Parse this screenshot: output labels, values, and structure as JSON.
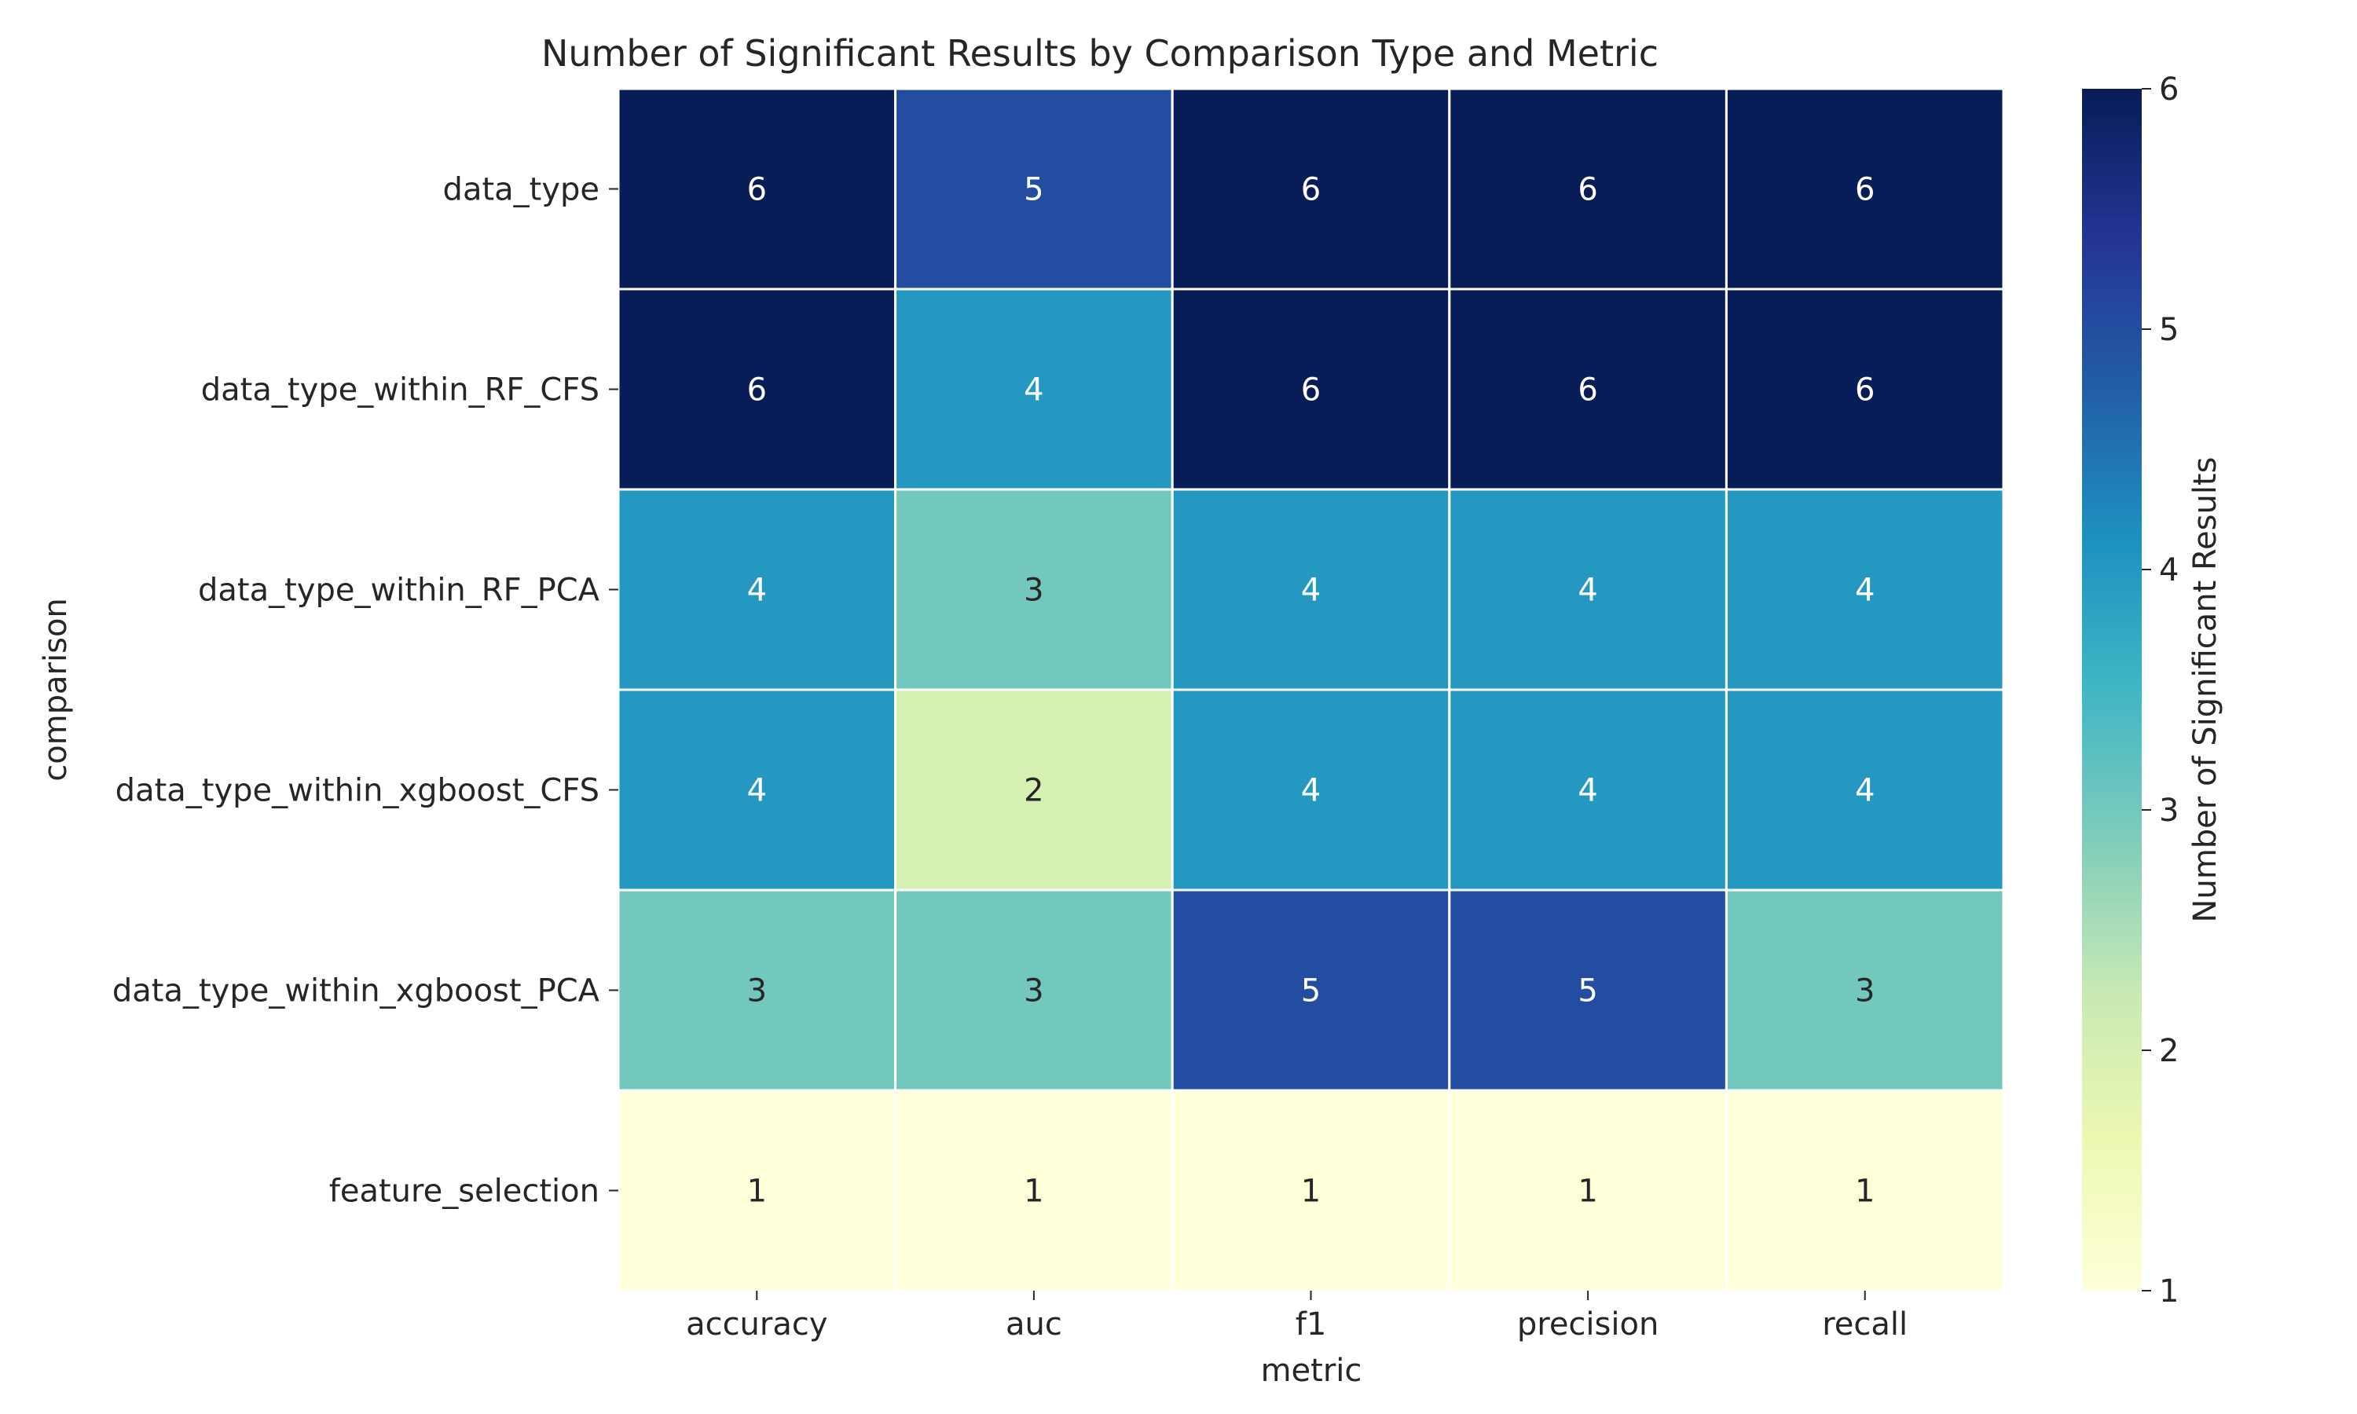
{
  "chart_data": {
    "type": "heatmap",
    "title": "Number of Significant Results by Comparison Type and Metric",
    "xlabel": "metric",
    "ylabel": "comparison",
    "x_categories": [
      "accuracy",
      "auc",
      "f1",
      "precision",
      "recall"
    ],
    "y_categories": [
      "data_type",
      "data_type_within_RF_CFS",
      "data_type_within_RF_PCA",
      "data_type_within_xgboost_CFS",
      "data_type_within_xgboost_PCA",
      "feature_selection"
    ],
    "values": [
      [
        6,
        5,
        6,
        6,
        6
      ],
      [
        6,
        4,
        6,
        6,
        6
      ],
      [
        4,
        3,
        4,
        4,
        4
      ],
      [
        4,
        2,
        4,
        4,
        4
      ],
      [
        3,
        3,
        5,
        5,
        3
      ],
      [
        1,
        1,
        1,
        1,
        1
      ]
    ],
    "colorbar": {
      "label": "Number of Significant Results",
      "range": [
        1,
        6
      ],
      "ticks": [
        "1",
        "2",
        "3",
        "4",
        "5",
        "6"
      ],
      "colormap": "YlGnBu"
    }
  }
}
